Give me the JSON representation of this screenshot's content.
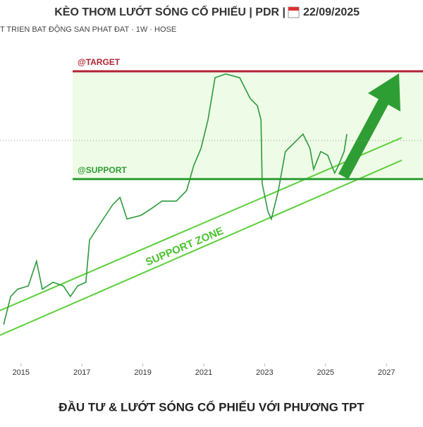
{
  "chart_data": {
    "type": "line",
    "title": "KÈO THƠM LƯỚT SÓNG CỔ PHIẾU | PDR |",
    "date": "22/09/2025",
    "subtitle": "T TRIEN BAT ĐỘNG SAN PHAT ĐAT · 1W · HOSE",
    "footer": "ĐẦU TƯ & LƯỚT SÓNG CỔ PHIẾU VỚI PHƯƠNG TPT",
    "annotation": "SUPPORT ZONE",
    "levels": [
      {
        "name": "@TARGET",
        "value": 63.7,
        "color": "#b22234"
      },
      {
        "name": "@SUPPORT",
        "value": 40.2,
        "color": "#2e9e34"
      }
    ],
    "current_level": 48.6,
    "xlim": [
      2014.31,
      2028.2
    ],
    "ylim": [
      0,
      70
    ],
    "xticks": [
      2015,
      2017,
      2019,
      2021,
      2023,
      2025,
      2027
    ],
    "series": [
      {
        "name": "PDR",
        "color": "#2b9a3c",
        "x": [
          2014.43,
          2014.66,
          2014.89,
          2015.24,
          2015.51,
          2015.7,
          2016.05,
          2016.39,
          2016.62,
          2016.86,
          2017.13,
          2017.25,
          2017.55,
          2018.01,
          2018.25,
          2018.48,
          2018.94,
          2019.29,
          2019.63,
          2020.1,
          2020.44,
          2020.67,
          2020.91,
          2021.14,
          2021.37,
          2021.72,
          2022.18,
          2022.53,
          2022.76,
          2022.88,
          2022.92,
          2023.11,
          2023.22,
          2023.45,
          2023.68,
          2024.03,
          2024.26,
          2024.49,
          2024.61,
          2024.84,
          2025.07,
          2025.3,
          2025.42,
          2025.61,
          2025.7
        ],
        "values": [
          8.5,
          14.6,
          16.2,
          16.9,
          22.3,
          16.2,
          17.7,
          16.9,
          14.6,
          16.9,
          17.7,
          26.9,
          30.0,
          34.6,
          36.2,
          31.5,
          32.3,
          33.8,
          35.4,
          35.4,
          37.7,
          43.1,
          46.9,
          53.1,
          62.3,
          63.1,
          62.3,
          57.7,
          56.2,
          53.1,
          39.2,
          33.1,
          31.5,
          37.7,
          46.2,
          48.5,
          50.0,
          46.9,
          42.3,
          46.2,
          45.4,
          41.5,
          43.1,
          46.2,
          50.0
        ]
      }
    ]
  }
}
